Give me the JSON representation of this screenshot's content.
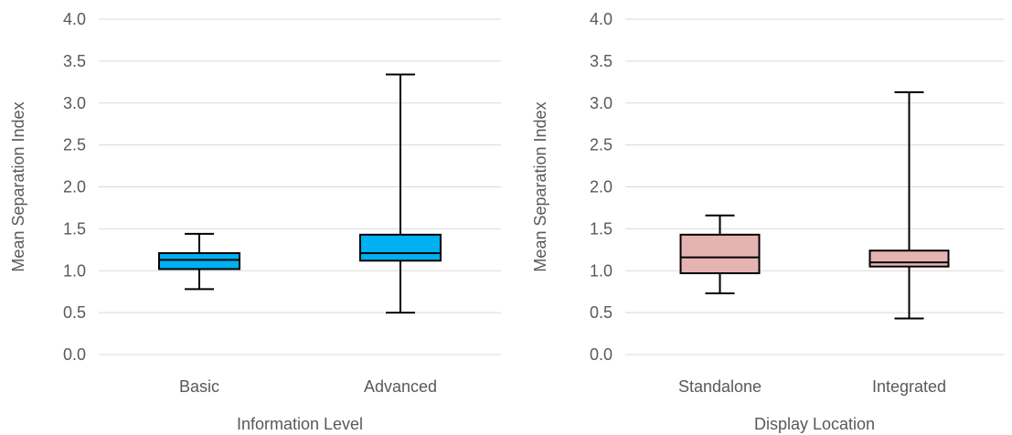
{
  "chart_data": [
    {
      "type": "box",
      "xlabel": "Information Level",
      "ylabel": "Mean Separation Index",
      "ylim": [
        0,
        4
      ],
      "yticks": [
        "0.0",
        "0.5",
        "1.0",
        "1.5",
        "2.0",
        "2.5",
        "3.0",
        "3.5",
        "4.0"
      ],
      "grid": true,
      "box_color": "#00B0F0",
      "categories": [
        "Basic",
        "Advanced"
      ],
      "boxes": [
        {
          "min": 0.78,
          "q1": 1.02,
          "median": 1.13,
          "q3": 1.21,
          "max": 1.44
        },
        {
          "min": 0.5,
          "q1": 1.12,
          "median": 1.21,
          "q3": 1.43,
          "max": 3.34
        }
      ]
    },
    {
      "type": "box",
      "xlabel": "Display Location",
      "ylabel": "Mean Separation Index",
      "ylim": [
        0,
        4
      ],
      "yticks": [
        "0.0",
        "0.5",
        "1.0",
        "1.5",
        "2.0",
        "2.5",
        "3.0",
        "3.5",
        "4.0"
      ],
      "grid": true,
      "box_color": "#E6B3B3",
      "categories": [
        "Standalone",
        "Integrated"
      ],
      "boxes": [
        {
          "min": 0.73,
          "q1": 0.97,
          "median": 1.16,
          "q3": 1.43,
          "max": 1.66
        },
        {
          "min": 0.43,
          "q1": 1.05,
          "median": 1.1,
          "q3": 1.24,
          "max": 3.13
        }
      ]
    }
  ]
}
